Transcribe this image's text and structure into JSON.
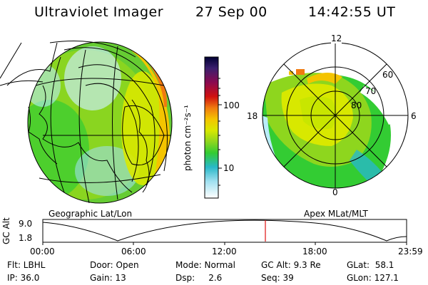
{
  "header": {
    "instrument": "Ultraviolet Imager",
    "date": "27 Sep 00",
    "time": "14:42:55 UT"
  },
  "left_panel": {
    "label": "Geographic Lat/Lon"
  },
  "color_bar": {
    "unit_label": "photon cm⁻²s⁻¹",
    "ticks": [
      "100",
      "10"
    ],
    "colors": [
      "#000033",
      "#3b1f6e",
      "#8b0a50",
      "#d01010",
      "#f07a10",
      "#f4c400",
      "#d8e800",
      "#8ed61e",
      "#33cc33",
      "#28b8c8",
      "#58c8f0",
      "#b8ecf8",
      "#ffffff"
    ]
  },
  "right_panel": {
    "label": "Apex MLat/MLT",
    "mlt_labels": {
      "top": "12",
      "left": "18",
      "right": "6",
      "bottom": "0"
    },
    "lat_labels": [
      "60",
      "70",
      "80"
    ]
  },
  "timeline": {
    "y_axis_label": "GC Alt",
    "y_ticks": [
      "9.0",
      "1.8"
    ],
    "x_ticks": [
      "00:00",
      "06:00",
      "12:00",
      "18:00",
      "23:59"
    ],
    "current_time_marker": "14:42:55",
    "marker_color": "#e01010"
  },
  "info_rows": [
    [
      {
        "text": "Flt: LBHL"
      },
      {
        "text": "Door: Open"
      },
      {
        "text": "Mode: Normal"
      },
      {
        "text": "GC Alt: 9.3 Re"
      },
      {
        "text": "GLat:  58.1"
      }
    ],
    [
      {
        "text": "IP: 36.0"
      },
      {
        "text": "Gain: 13"
      },
      {
        "text": "Dsp:     2.6"
      },
      {
        "text": "Seq: 39"
      },
      {
        "text": "GLon: 127.1"
      }
    ]
  ]
}
